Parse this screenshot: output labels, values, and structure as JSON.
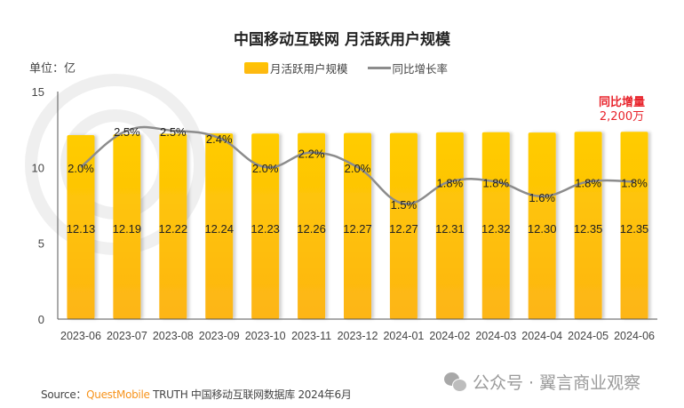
{
  "chart_data": {
    "type": "bar",
    "title": "中国移动互联网 月活跃用户规模",
    "unit_label": "单位：亿",
    "categories": [
      "2023-06",
      "2023-07",
      "2023-08",
      "2023-09",
      "2023-10",
      "2023-11",
      "2023-12",
      "2024-01",
      "2024-02",
      "2024-03",
      "2024-04",
      "2024-05",
      "2024-06"
    ],
    "series": [
      {
        "name": "月活跃用户规模",
        "type": "bar",
        "values": [
          12.13,
          12.19,
          12.22,
          12.24,
          12.23,
          12.26,
          12.27,
          12.27,
          12.31,
          12.32,
          12.3,
          12.35,
          12.35
        ],
        "labels": [
          "12.13",
          "12.19",
          "12.22",
          "12.24",
          "12.23",
          "12.26",
          "12.27",
          "12.27",
          "12.31",
          "12.32",
          "12.30",
          "12.35",
          "12.35"
        ],
        "color": "#ffc400"
      },
      {
        "name": "同比增长率",
        "type": "line",
        "values": [
          2.0,
          2.5,
          2.5,
          2.4,
          2.0,
          2.2,
          2.0,
          1.5,
          1.8,
          1.8,
          1.6,
          1.8,
          1.8
        ],
        "labels": [
          "2.0%",
          "2.5%",
          "2.5%",
          "2.4%",
          "2.0%",
          "2.2%",
          "2.0%",
          "1.5%",
          "1.8%",
          "1.8%",
          "1.6%",
          "1.8%",
          "1.8%"
        ],
        "color": "#8c8c8c"
      }
    ],
    "yticks": [
      "0",
      "5",
      "10",
      "15"
    ],
    "ylim": [
      0,
      15
    ],
    "legend": "top-center",
    "grid": false,
    "annotation": {
      "line1": "同比增量",
      "line2": "2,200万",
      "color": "#e8232b"
    }
  },
  "source": {
    "prefix": "Source：",
    "brand": "QuestMobile",
    "text": " TRUTH 中国移动互联网数据库 2024年6月"
  },
  "watermark": {
    "text": "公众号 · 翼言商业观察"
  }
}
